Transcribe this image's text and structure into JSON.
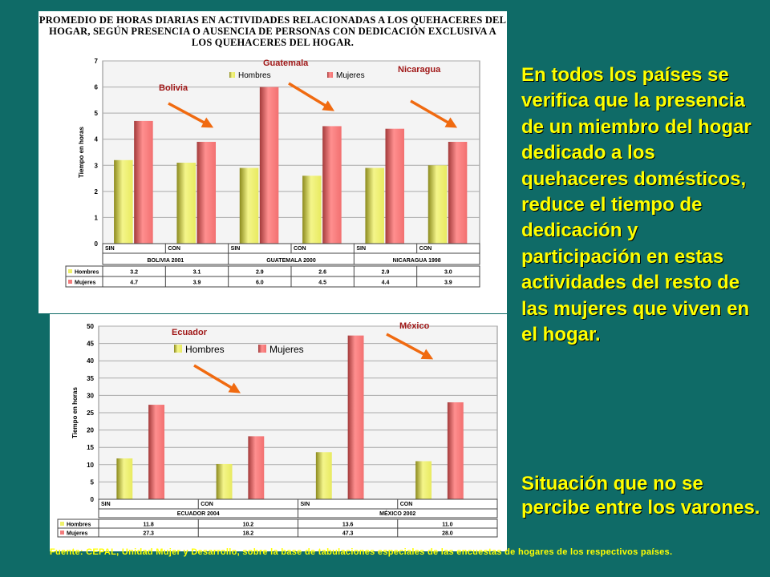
{
  "slide": {
    "main_text": "En todos los países se verifica que la presencia de un miembro del hogar dedicado a los quehaceres domésticos, reduce el tiempo de dedicación y participación en estas actividades del resto de las mujeres que viven en el hogar.",
    "secondary_text": "Situación que no se percibe entre los varones.",
    "source": "Fuente: CEPAL, Unidad Mujer y Desarrollo, sobre la base de tabulaciones especiales de las encuestas de hogares de los respectivos países."
  },
  "colors": {
    "background": "#0f6b67",
    "text_yellow": "#ffff00",
    "hombres": "#eef06a",
    "mujeres": "#f27c7c",
    "arrow": "#f06a10",
    "country_label": "#a01818"
  },
  "chart_data": [
    {
      "type": "bar",
      "title": "PROMEDIO DE HORAS DIARIAS EN ACTIVIDADES RELACIONADAS A LOS QUEHACERES DEL HOGAR, SEGÚN PRESENCIA O AUSENCIA DE PERSONAS CON DEDICACIÓN EXCLUSIVA A LOS QUEHACERES DEL HOGAR.",
      "ylabel": "Tiempo en horas",
      "ylim": [
        0,
        7
      ],
      "yticks": [
        "0",
        "1",
        "2",
        "3",
        "4",
        "5",
        "6",
        "7"
      ],
      "grid": true,
      "legend": "top-center",
      "categories": [
        "SIN",
        "CON",
        "SIN",
        "CON",
        "SIN",
        "CON"
      ],
      "groups": [
        "BOLIVIA 2001",
        "GUATEMALA 2000",
        "NICARAGUA 1998"
      ],
      "series": [
        {
          "name": "Hombres",
          "values": [
            3.2,
            3.1,
            2.9,
            2.6,
            2.9,
            3.0
          ],
          "labels": [
            "3.2",
            "3.1",
            "2.9",
            "2.6",
            "2.9",
            "3.0"
          ]
        },
        {
          "name": "Mujeres",
          "values": [
            4.7,
            3.9,
            6.0,
            4.5,
            4.4,
            3.9
          ],
          "labels": [
            "4.7",
            "3.9",
            "6.0",
            "4.5",
            "4.4",
            "3.9"
          ]
        }
      ],
      "annotations": [
        "Bolivia",
        "Guatemala",
        "Nicaragua"
      ]
    },
    {
      "type": "bar",
      "ylabel": "Tiempo en horas",
      "ylim": [
        0,
        50
      ],
      "yticks": [
        "0",
        "5",
        "10",
        "15",
        "20",
        "25",
        "30",
        "35",
        "40",
        "45",
        "50"
      ],
      "grid": true,
      "legend": "top-left",
      "categories": [
        "SIN",
        "CON",
        "SIN",
        "CON"
      ],
      "groups": [
        "ECUADOR 2004",
        "MÉXICO 2002"
      ],
      "series": [
        {
          "name": "Hombres",
          "values": [
            11.8,
            10.2,
            13.6,
            11.0
          ],
          "labels": [
            "11.8",
            "10.2",
            "13.6",
            "11.0"
          ]
        },
        {
          "name": "Mujeres",
          "values": [
            27.3,
            18.2,
            47.3,
            28.0
          ],
          "labels": [
            "27.3",
            "18.2",
            "47.3",
            "28.0"
          ]
        }
      ],
      "annotations": [
        "Ecuador",
        "México"
      ]
    }
  ]
}
